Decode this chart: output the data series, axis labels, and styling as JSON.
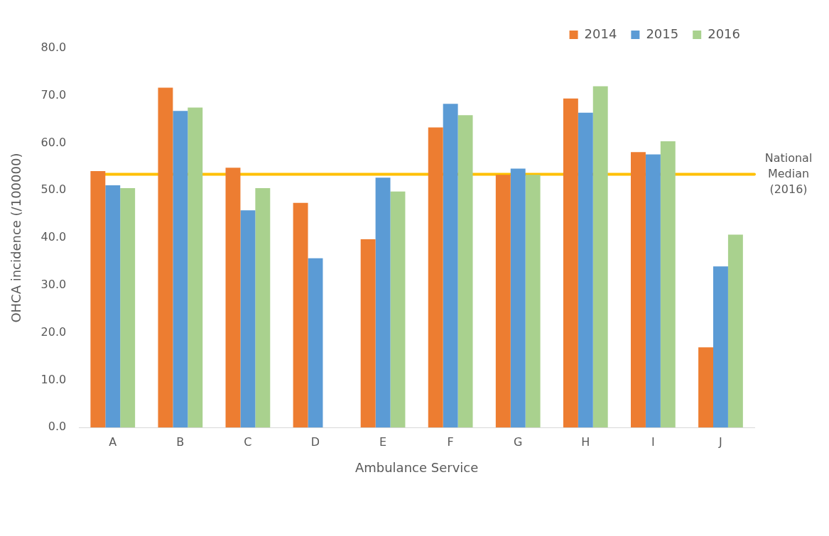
{
  "chart_data": {
    "type": "bar",
    "xlabel": "Ambulance Service",
    "ylabel": "OHCA incidence (/100000)",
    "categories": [
      "A",
      "B",
      "C",
      "D",
      "E",
      "F",
      "G",
      "H",
      "I",
      "J"
    ],
    "series": [
      {
        "name": "2014",
        "color": "#ed7d31",
        "values": [
          54.1,
          71.7,
          54.8,
          47.4,
          39.7,
          63.3,
          53.3,
          69.4,
          58.1,
          16.9
        ]
      },
      {
        "name": "2015",
        "color": "#5b9bd5",
        "values": [
          51.1,
          66.8,
          45.8,
          35.7,
          52.7,
          68.3,
          54.6,
          66.4,
          57.6,
          34.0
        ]
      },
      {
        "name": "2016",
        "color": "#a9d18e",
        "values": [
          50.5,
          67.5,
          50.5,
          null,
          49.8,
          65.9,
          53.3,
          72.0,
          60.4,
          40.7
        ]
      }
    ],
    "ylim": [
      0,
      80
    ],
    "yticks": [
      {
        "value": 0,
        "label": "0.0"
      },
      {
        "value": 10,
        "label": "10.0"
      },
      {
        "value": 20,
        "label": "20.0"
      },
      {
        "value": 30,
        "label": "30.0"
      },
      {
        "value": 40,
        "label": "40.0"
      },
      {
        "value": 50,
        "label": "50.0"
      },
      {
        "value": 60,
        "label": "60.0"
      },
      {
        "value": 70,
        "label": "70.0"
      },
      {
        "value": 80,
        "label": "80.0"
      }
    ],
    "ref_lines": [
      {
        "axis": "y",
        "value": 53.4,
        "label": "National\nMedian\n(2016)",
        "color": "#ffc000"
      }
    ],
    "grid": false,
    "legend": "top right"
  }
}
